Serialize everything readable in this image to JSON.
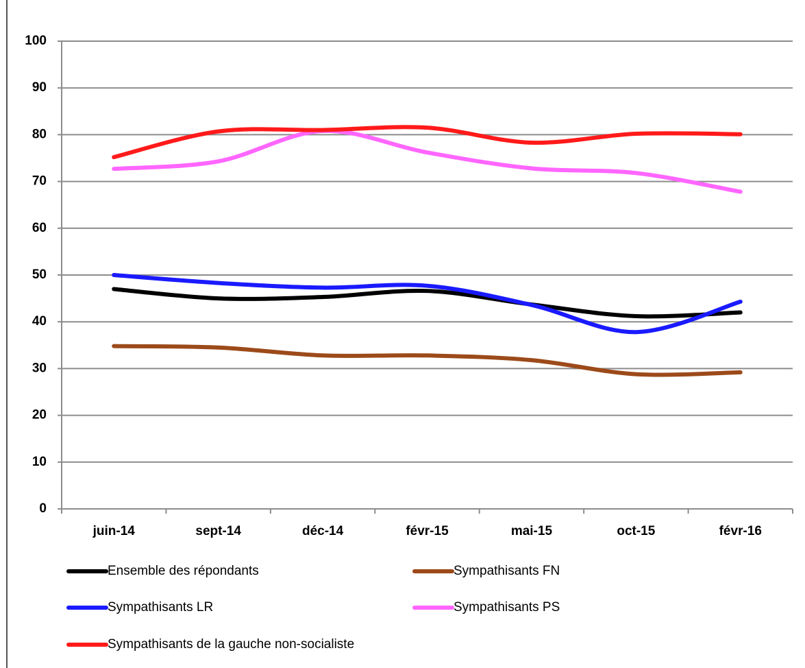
{
  "chart_data": {
    "type": "line",
    "categories": [
      "juin-14",
      "sept-14",
      "déc-14",
      "févr-15",
      "mai-15",
      "oct-15",
      "févr-16"
    ],
    "series": [
      {
        "name": "Ensemble des répondants",
        "color": "#000000",
        "values": [
          47,
          45,
          45.3,
          46.6,
          43.7,
          41.2,
          42
        ]
      },
      {
        "name": "Sympathisants FN",
        "color": "#9c4a1a",
        "values": [
          34.8,
          34.5,
          32.8,
          32.8,
          31.8,
          28.8,
          29.2
        ]
      },
      {
        "name": "Sympathisants LR",
        "color": "#1a1aff",
        "values": [
          50,
          48.3,
          47.3,
          47.7,
          43.6,
          37.8,
          44.3
        ]
      },
      {
        "name": "Sympathisants PS",
        "color": "#ff66ff",
        "values": [
          72.7,
          74.3,
          80.8,
          76.2,
          72.8,
          71.8,
          67.8
        ]
      },
      {
        "name": "Sympathisants de la gauche non-socialiste",
        "color": "#ff1a1a",
        "values": [
          75.2,
          80.7,
          81,
          81.5,
          78.3,
          80.2,
          80.1
        ]
      }
    ],
    "ylim": [
      0,
      100
    ],
    "yticks": [
      0,
      10,
      20,
      30,
      40,
      50,
      60,
      70,
      80,
      90,
      100
    ],
    "grid": true,
    "smooth": true
  }
}
